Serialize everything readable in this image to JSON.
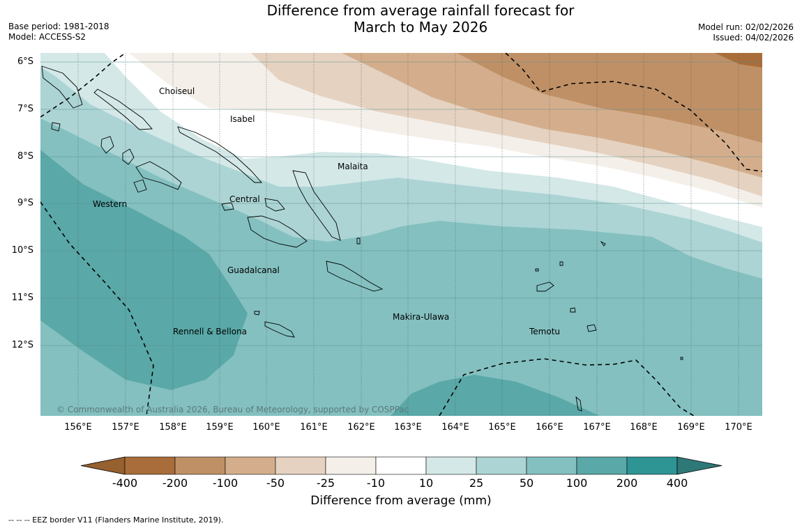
{
  "title": {
    "line1": "Difference from average rainfall forecast for",
    "line2": "March to May 2026"
  },
  "meta_left": {
    "base_period": "Base period: 1981-2018",
    "model": "Model: ACCESS-S2"
  },
  "meta_right": {
    "model_run": "Model run: 02/02/2026",
    "issued": "Issued: 04/02/2026"
  },
  "map": {
    "lon_labels": [
      "156°E",
      "157°E",
      "158°E",
      "159°E",
      "160°E",
      "161°E",
      "162°E",
      "163°E",
      "164°E",
      "165°E",
      "166°E",
      "167°E",
      "168°E",
      "169°E",
      "170°E"
    ],
    "lat_labels": [
      "6°S",
      "7°S",
      "8°S",
      "9°S",
      "10°S",
      "11°S",
      "12°S"
    ],
    "regions": [
      "Choiseul",
      "Isabel",
      "Malaita",
      "Central",
      "Western",
      "Guadalcanal",
      "Makira-Ulawa",
      "Rennell & Bellona",
      "Temotu"
    ],
    "copyright": "© Commonwealth of Australia 2026, Bureau of Meteorology, supported by COSPPac"
  },
  "colorbar": {
    "ticks": [
      "-400",
      "-200",
      "-100",
      "-50",
      "-25",
      "-10",
      "10",
      "25",
      "50",
      "100",
      "200",
      "400"
    ],
    "colors": [
      "#a86d3a",
      "#bf9066",
      "#d4ae8c",
      "#e5d2c1",
      "#f4efe9",
      "#ffffff",
      "#d4e8e8",
      "#acd4d4",
      "#84c0c0",
      "#5aa8a8",
      "#2e9494",
      "#2f7878"
    ],
    "under_color": "#96602f",
    "over_color": "#2f7878",
    "title": "Difference from average (mm)"
  },
  "footer": "--  --  -- EEZ border V11 (Flanders Marine Institute, 2019)."
}
